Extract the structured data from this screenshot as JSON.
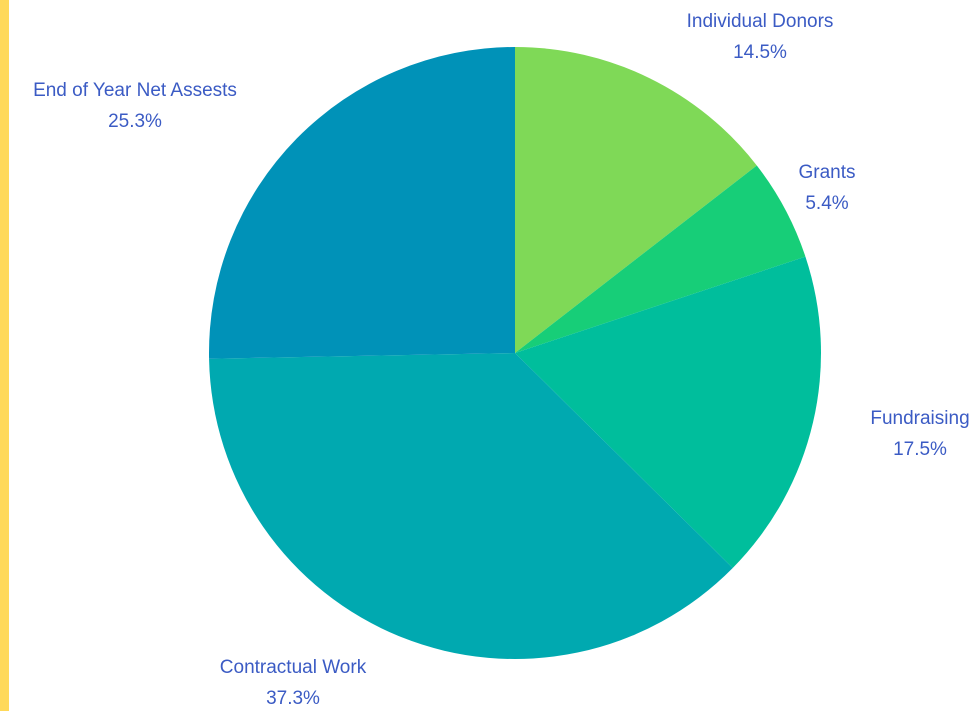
{
  "chart_data": {
    "type": "pie",
    "title": "",
    "slices": [
      {
        "label": "Individual Donors",
        "percent_label": "14.5%",
        "value": 14.5,
        "color": "#7FD957"
      },
      {
        "label": "Grants",
        "percent_label": "5.4%",
        "value": 5.4,
        "color": "#17CE78"
      },
      {
        "label": "Fundraising",
        "percent_label": "17.5%",
        "value": 17.5,
        "color": "#00BE9C"
      },
      {
        "label": "Contractual Work",
        "percent_label": "37.3%",
        "value": 37.3,
        "color": "#00A9B0"
      },
      {
        "label": "End of Year Net Assests",
        "percent_label": "25.3%",
        "value": 25.3,
        "color": "#0092B8"
      }
    ],
    "start": "12 o'clock",
    "direction": "clockwise",
    "legend": "none",
    "label_color": "#3B5BC4"
  },
  "theme": {
    "accent_bar_color": "#FFD95A"
  }
}
